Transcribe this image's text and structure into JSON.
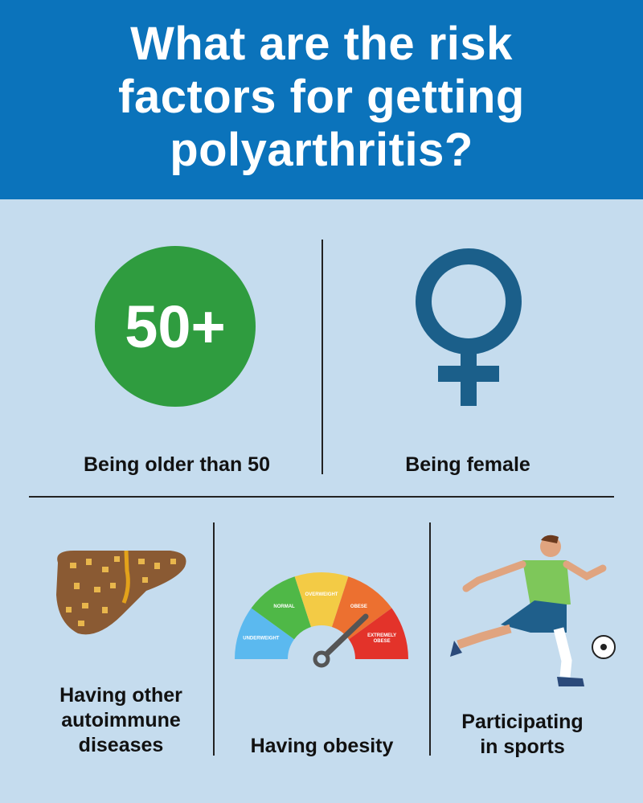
{
  "header": {
    "title": "What are the risk factors for getting polyarthritis?"
  },
  "age": {
    "badge": "50+",
    "label": "Being older than 50",
    "color": "#2f9c3f"
  },
  "female": {
    "icon": "female-symbol-icon",
    "label": "Being female",
    "color": "#1b5f8a"
  },
  "autoimmune": {
    "icon": "liver-icon",
    "label_lines": [
      "Having other",
      "autoimmune",
      "diseases"
    ]
  },
  "obesity": {
    "icon": "bmi-gauge-icon",
    "label": "Having obesity",
    "gauge": {
      "segments": [
        "UNDERWEIGHT",
        "NORMAL",
        "OVERWEIGHT",
        "OBESE",
        "EXTREMELY OBESE"
      ],
      "colors": [
        "#5bb9ef",
        "#4fb847",
        "#f3cb45",
        "#ec7030",
        "#e3332a"
      ]
    }
  },
  "sports": {
    "icon": "soccer-player-icon",
    "label_lines": [
      "Participating",
      "in sports"
    ]
  }
}
